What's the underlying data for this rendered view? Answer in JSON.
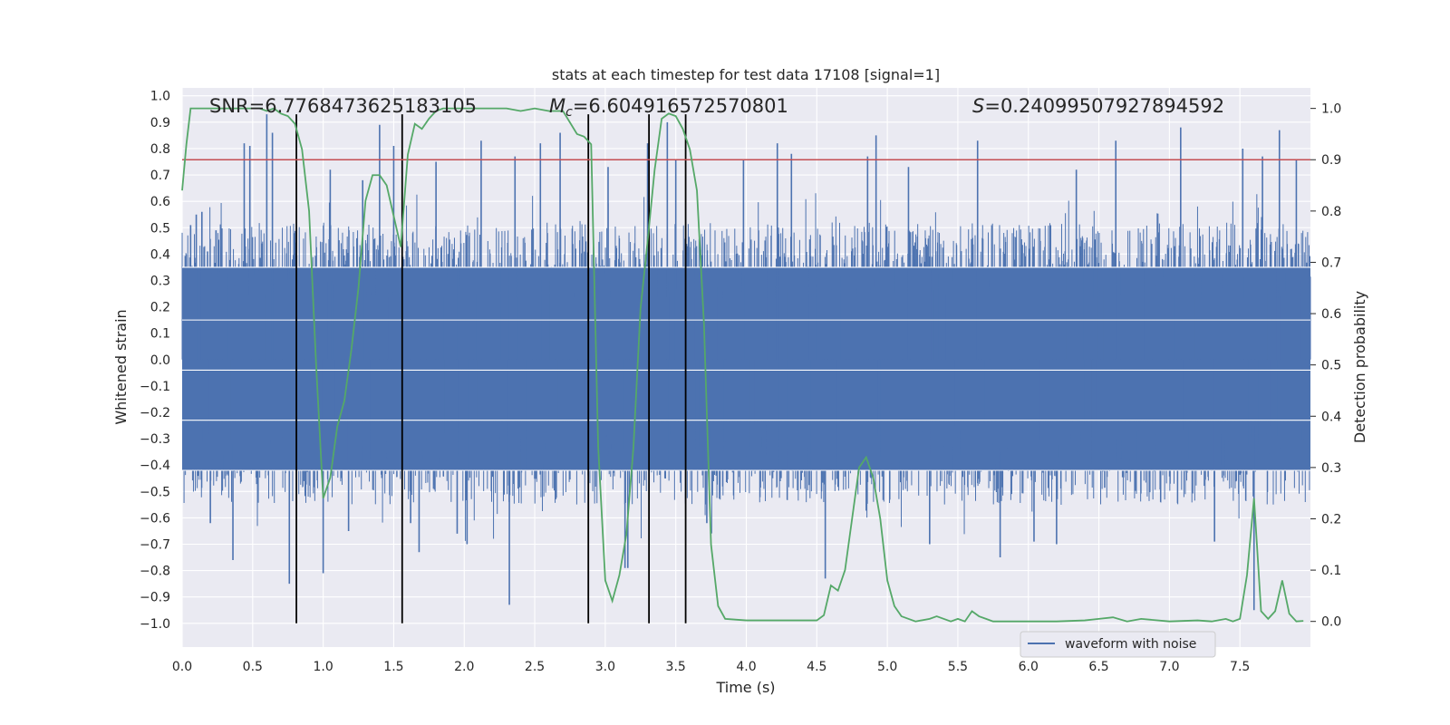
{
  "chart_data": {
    "type": "line",
    "title": "stats at each timestep for test data 17108 [signal=1]",
    "xlabel": "Time (s)",
    "ylabel_left": "Whitened strain",
    "ylabel_right": "Detection probability",
    "xlim": [
      0.0,
      8.0
    ],
    "ylim_left": [
      -1.09,
      1.03
    ],
    "ylim_right": [
      -0.05,
      1.04
    ],
    "x_ticks": [
      0.0,
      0.5,
      1.0,
      1.5,
      2.0,
      2.5,
      3.0,
      3.5,
      4.0,
      4.5,
      5.0,
      5.5,
      6.0,
      6.5,
      7.0,
      7.5
    ],
    "x_tick_labels": [
      "0.0",
      "0.5",
      "1.0",
      "1.5",
      "2.0",
      "2.5",
      "3.0",
      "3.5",
      "4.0",
      "4.5",
      "5.0",
      "5.5",
      "6.0",
      "6.5",
      "7.0",
      "7.5"
    ],
    "y_left_ticks": [
      1.0,
      0.9,
      0.8,
      0.7,
      0.6,
      0.5,
      0.4,
      0.3,
      0.2,
      0.1,
      0.0,
      -0.1,
      -0.2,
      -0.3,
      -0.4,
      -0.5,
      -0.6,
      -0.7,
      -0.8,
      -0.9,
      -1.0
    ],
    "y_left_tick_labels": [
      "1.0",
      "0.9",
      "0.8",
      "0.7",
      "0.6",
      "0.5",
      "0.4",
      "0.3",
      "0.2",
      "0.1",
      "0.0",
      "−0.1",
      "−0.2",
      "−0.3",
      "−0.4",
      "−0.5",
      "−0.6",
      "−0.7",
      "−0.8",
      "−0.9",
      "−1.0"
    ],
    "y_right_ticks": [
      1.0,
      0.9,
      0.8,
      0.7,
      0.6,
      0.5,
      0.4,
      0.3,
      0.2,
      0.1,
      0.0
    ],
    "y_right_tick_labels": [
      "1.0",
      "0.9",
      "0.8",
      "0.7",
      "0.6",
      "0.5",
      "0.4",
      "0.3",
      "0.2",
      "0.1",
      "0.0"
    ],
    "grid": true,
    "background_color": "#eaeaf2",
    "annotations": {
      "snr": "SNR=6.7768473625183105",
      "mc_symbol": "M",
      "mc_sub": "c",
      "mc_value": "=6.604916572570801",
      "s_symbol": "S",
      "s_value": "=0.24099507927894592"
    },
    "threshold": {
      "value_right": 0.9,
      "color": "#c44e52"
    },
    "vertical_lines": {
      "x": [
        0.81,
        1.56,
        2.88,
        3.31,
        3.57
      ],
      "y_range_left": [
        -1.0,
        0.93
      ],
      "color": "#000000"
    },
    "waveform": {
      "name": "waveform with noise",
      "color": "#4c72b0",
      "x_range": [
        0.0,
        8.0
      ],
      "envelope_core": [
        -0.55,
        0.52
      ],
      "peaks_x": [
        0.06,
        0.1,
        0.14,
        0.18,
        0.2,
        0.24,
        0.36,
        0.44,
        0.48,
        0.6,
        0.64,
        0.76,
        1.0,
        1.05,
        1.18,
        1.28,
        1.4,
        1.5,
        1.62,
        1.68,
        1.8,
        1.95,
        2.02,
        2.12,
        2.32,
        2.36,
        2.54,
        2.68,
        3.02,
        3.14,
        3.16,
        3.3,
        3.44,
        3.5,
        3.72,
        3.98,
        4.22,
        4.32,
        4.56,
        4.86,
        4.92,
        5.15,
        5.3,
        5.64,
        5.8,
        6.04,
        6.2,
        6.34,
        6.62,
        7.08,
        7.32,
        7.52,
        7.6,
        7.66,
        7.78,
        7.9
      ],
      "peaks_y": [
        0.51,
        0.55,
        0.56,
        0.41,
        -0.62,
        0.49,
        -0.76,
        0.82,
        0.81,
        0.93,
        0.86,
        -0.85,
        -0.81,
        0.72,
        -0.65,
        0.68,
        0.89,
        0.81,
        -0.62,
        -0.73,
        0.75,
        -0.66,
        -0.7,
        0.83,
        -0.93,
        0.77,
        0.82,
        0.86,
        0.73,
        -0.79,
        -0.79,
        0.82,
        0.9,
        0.76,
        -0.62,
        0.76,
        0.82,
        0.78,
        -0.83,
        0.77,
        0.85,
        0.73,
        -0.7,
        0.83,
        -0.75,
        -0.69,
        -0.7,
        0.72,
        0.83,
        0.88,
        -0.69,
        0.8,
        -0.95,
        0.77,
        0.87,
        0.76
      ]
    },
    "probability": {
      "color": "#55a868",
      "x": [
        0.0,
        0.03,
        0.06,
        0.1,
        0.15,
        0.2,
        0.25,
        0.3,
        0.35,
        0.4,
        0.45,
        0.5,
        0.55,
        0.6,
        0.65,
        0.7,
        0.75,
        0.8,
        0.85,
        0.9,
        0.95,
        1.0,
        1.05,
        1.1,
        1.15,
        1.2,
        1.25,
        1.3,
        1.35,
        1.4,
        1.45,
        1.5,
        1.55,
        1.6,
        1.65,
        1.7,
        1.75,
        1.8,
        1.85,
        1.9,
        1.95,
        2.0,
        2.1,
        2.2,
        2.3,
        2.4,
        2.5,
        2.6,
        2.7,
        2.8,
        2.85,
        2.9,
        2.95,
        3.0,
        3.05,
        3.1,
        3.15,
        3.2,
        3.25,
        3.3,
        3.35,
        3.4,
        3.45,
        3.5,
        3.55,
        3.6,
        3.65,
        3.7,
        3.75,
        3.8,
        3.85,
        3.9,
        4.0,
        4.2,
        4.4,
        4.5,
        4.55,
        4.6,
        4.65,
        4.7,
        4.75,
        4.8,
        4.85,
        4.9,
        4.95,
        5.0,
        5.05,
        5.1,
        5.2,
        5.3,
        5.35,
        5.45,
        5.5,
        5.55,
        5.6,
        5.65,
        5.7,
        5.75,
        5.8,
        6.0,
        6.2,
        6.4,
        6.5,
        6.6,
        6.7,
        6.8,
        7.0,
        7.2,
        7.3,
        7.4,
        7.45,
        7.5,
        7.55,
        7.6,
        7.65,
        7.7,
        7.75,
        7.8,
        7.85,
        7.9,
        7.95
      ],
      "y": [
        0.84,
        0.93,
        1.0,
        1.0,
        1.0,
        1.0,
        1.0,
        1.0,
        1.0,
        1.0,
        1.0,
        1.0,
        1.0,
        0.995,
        1.0,
        0.99,
        0.985,
        0.97,
        0.92,
        0.8,
        0.5,
        0.24,
        0.28,
        0.38,
        0.43,
        0.53,
        0.65,
        0.82,
        0.87,
        0.87,
        0.85,
        0.79,
        0.73,
        0.91,
        0.97,
        0.96,
        0.98,
        0.995,
        1.0,
        1.0,
        1.0,
        1.0,
        1.0,
        1.0,
        1.0,
        0.995,
        1.0,
        0.995,
        0.995,
        0.95,
        0.945,
        0.93,
        0.34,
        0.08,
        0.04,
        0.09,
        0.17,
        0.34,
        0.61,
        0.74,
        0.88,
        0.98,
        0.99,
        0.985,
        0.96,
        0.92,
        0.84,
        0.58,
        0.15,
        0.03,
        0.005,
        0.004,
        0.002,
        0.002,
        0.002,
        0.002,
        0.012,
        0.07,
        0.06,
        0.1,
        0.2,
        0.3,
        0.32,
        0.28,
        0.2,
        0.08,
        0.03,
        0.01,
        0.0,
        0.005,
        0.01,
        0.0,
        0.005,
        0.0,
        0.02,
        0.01,
        0.005,
        0.0,
        0.0,
        0.0,
        0.0,
        0.002,
        0.005,
        0.008,
        0.0,
        0.005,
        0.0,
        0.002,
        0.0,
        0.005,
        0.0,
        0.005,
        0.09,
        0.24,
        0.02,
        0.005,
        0.02,
        0.08,
        0.015,
        0.0,
        0.001
      ]
    },
    "legend": {
      "placement": "lower-right",
      "entries": [
        "waveform with noise"
      ]
    }
  }
}
